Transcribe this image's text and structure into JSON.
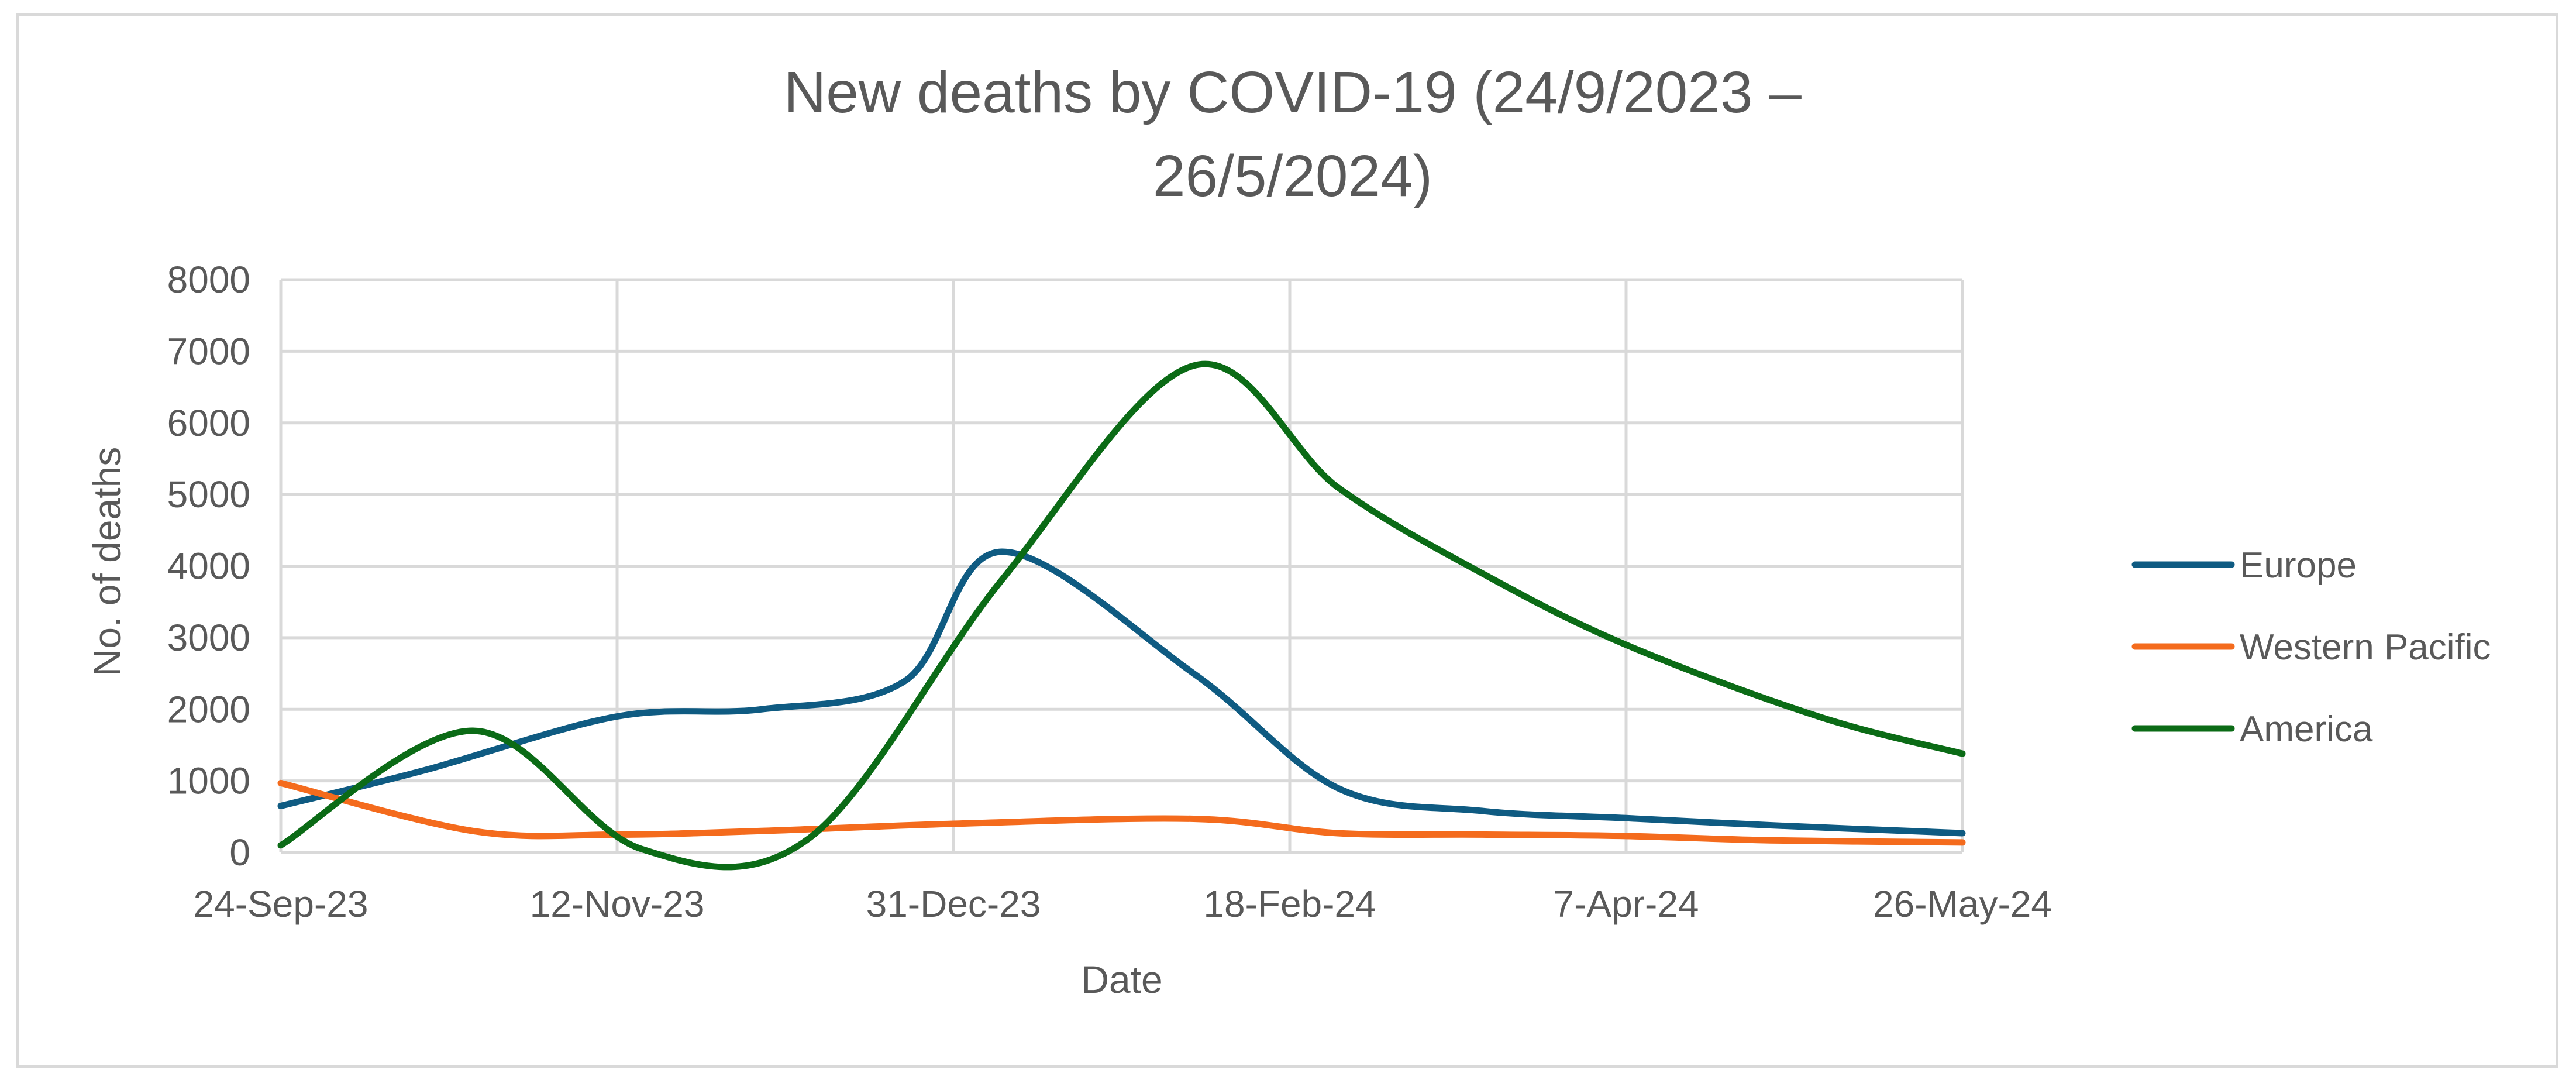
{
  "chart_data": {
    "type": "line",
    "title_lines": [
      "New deaths by COVID-19 (24/9/2023 –",
      "26/5/2024)"
    ],
    "xlabel": "Date",
    "ylabel": "No. of deaths",
    "ylim": [
      0,
      8000
    ],
    "y_ticks": [
      0,
      1000,
      2000,
      3000,
      4000,
      5000,
      6000,
      7000,
      8000
    ],
    "x_ticks": [
      "24-Sep-23",
      "12-Nov-23",
      "31-Dec-23",
      "18-Feb-24",
      "7-Apr-24",
      "26-May-24"
    ],
    "x_range_weeks": [
      0,
      35
    ],
    "grid": true,
    "legend_position": "right",
    "series": [
      {
        "name": "Europe",
        "color": "#0f5b82",
        "x_weeks": [
          0,
          3,
          7,
          10,
          13,
          15,
          19,
          22,
          25,
          28,
          31,
          35
        ],
        "values": [
          650,
          1150,
          1900,
          2000,
          2400,
          4200,
          2500,
          900,
          580,
          480,
          380,
          270
        ]
      },
      {
        "name": "Western Pacific",
        "color": "#f46b1d",
        "x_weeks": [
          0,
          4,
          7,
          10,
          14,
          19,
          22,
          25,
          28,
          31,
          35
        ],
        "values": [
          970,
          300,
          250,
          300,
          400,
          470,
          270,
          250,
          230,
          170,
          140
        ]
      },
      {
        "name": "America",
        "color": "#0b6b16",
        "x_weeks": [
          0,
          4,
          7.5,
          11,
          15,
          19,
          22,
          25,
          28,
          32,
          35
        ],
        "values": [
          100,
          1700,
          50,
          200,
          3800,
          6800,
          5100,
          3900,
          2900,
          1900,
          1380
        ]
      }
    ]
  }
}
